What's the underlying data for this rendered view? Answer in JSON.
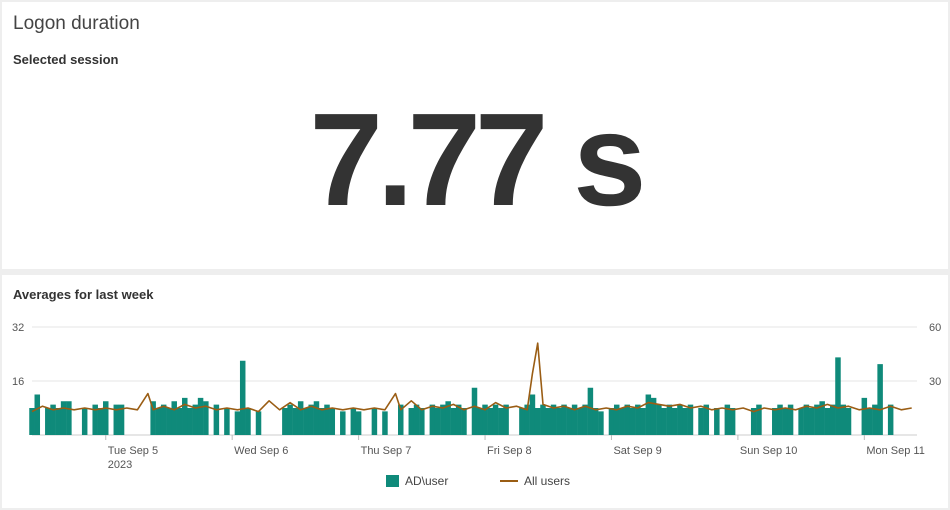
{
  "top_panel": {
    "title": "Logon duration",
    "subtitle": "Selected session",
    "value": "7.77 s"
  },
  "bottom_panel": {
    "subtitle": "Averages for last week"
  },
  "colors": {
    "bar": "#0f8a7a",
    "line": "#9a5d14",
    "grid": "#e6e6e6"
  },
  "chart_data": {
    "type": "bar",
    "title": "Averages for last week",
    "legend_position": "bottom",
    "grid": true,
    "y_left": {
      "ticks": [
        "32",
        "16"
      ],
      "range": [
        0,
        32
      ]
    },
    "y_right": {
      "ticks": [
        "60",
        "30"
      ],
      "range": [
        0,
        60
      ]
    },
    "x_range": [
      "2023-09-04 10:00",
      "2023-09-11 10:00"
    ],
    "x_ticks": [
      {
        "date": "2023-09-05",
        "label": "Tue Sep 5",
        "sublabel": "2023"
      },
      {
        "date": "2023-09-06",
        "label": "Wed Sep 6"
      },
      {
        "date": "2023-09-07",
        "label": "Thu Sep 7"
      },
      {
        "date": "2023-09-08",
        "label": "Fri Sep 8"
      },
      {
        "date": "2023-09-09",
        "label": "Sat Sep 9"
      },
      {
        "date": "2023-09-10",
        "label": "Sun Sep 10"
      },
      {
        "date": "2023-09-11",
        "label": "Mon Sep 11"
      }
    ],
    "series": [
      {
        "name": "AD\\user",
        "axis": "left",
        "type": "bar",
        "values": [
          {
            "x": "2023-09-04 10:00",
            "y": 8
          },
          {
            "x": "2023-09-04 11:00",
            "y": 12
          },
          {
            "x": "2023-09-04 13:00",
            "y": 8
          },
          {
            "x": "2023-09-04 14:00",
            "y": 9
          },
          {
            "x": "2023-09-04 15:00",
            "y": 8
          },
          {
            "x": "2023-09-04 16:00",
            "y": 10
          },
          {
            "x": "2023-09-04 17:00",
            "y": 10
          },
          {
            "x": "2023-09-04 20:00",
            "y": 8
          },
          {
            "x": "2023-09-04 22:00",
            "y": 9
          },
          {
            "x": "2023-09-04 23:00",
            "y": 8
          },
          {
            "x": "2023-09-05 00:00",
            "y": 10
          },
          {
            "x": "2023-09-05 02:00",
            "y": 9
          },
          {
            "x": "2023-09-05 03:00",
            "y": 9
          },
          {
            "x": "2023-09-05 09:00",
            "y": 10
          },
          {
            "x": "2023-09-05 10:00",
            "y": 8
          },
          {
            "x": "2023-09-05 11:00",
            "y": 9
          },
          {
            "x": "2023-09-05 12:00",
            "y": 8
          },
          {
            "x": "2023-09-05 13:00",
            "y": 10
          },
          {
            "x": "2023-09-05 14:00",
            "y": 8
          },
          {
            "x": "2023-09-05 15:00",
            "y": 11
          },
          {
            "x": "2023-09-05 16:00",
            "y": 8
          },
          {
            "x": "2023-09-05 17:00",
            "y": 9
          },
          {
            "x": "2023-09-05 18:00",
            "y": 11
          },
          {
            "x": "2023-09-05 19:00",
            "y": 10
          },
          {
            "x": "2023-09-05 21:00",
            "y": 9
          },
          {
            "x": "2023-09-05 23:00",
            "y": 8
          },
          {
            "x": "2023-09-06 01:00",
            "y": 7
          },
          {
            "x": "2023-09-06 02:00",
            "y": 22
          },
          {
            "x": "2023-09-06 03:00",
            "y": 8
          },
          {
            "x": "2023-09-06 05:00",
            "y": 7
          },
          {
            "x": "2023-09-06 10:00",
            "y": 8
          },
          {
            "x": "2023-09-06 11:00",
            "y": 9
          },
          {
            "x": "2023-09-06 12:00",
            "y": 8
          },
          {
            "x": "2023-09-06 13:00",
            "y": 10
          },
          {
            "x": "2023-09-06 14:00",
            "y": 8
          },
          {
            "x": "2023-09-06 15:00",
            "y": 9
          },
          {
            "x": "2023-09-06 16:00",
            "y": 10
          },
          {
            "x": "2023-09-06 17:00",
            "y": 8
          },
          {
            "x": "2023-09-06 18:00",
            "y": 9
          },
          {
            "x": "2023-09-06 19:00",
            "y": 8
          },
          {
            "x": "2023-09-06 21:00",
            "y": 7
          },
          {
            "x": "2023-09-06 23:00",
            "y": 8
          },
          {
            "x": "2023-09-07 00:00",
            "y": 7
          },
          {
            "x": "2023-09-07 03:00",
            "y": 8
          },
          {
            "x": "2023-09-07 05:00",
            "y": 7
          },
          {
            "x": "2023-09-07 08:00",
            "y": 9
          },
          {
            "x": "2023-09-07 10:00",
            "y": 8
          },
          {
            "x": "2023-09-07 11:00",
            "y": 9
          },
          {
            "x": "2023-09-07 12:00",
            "y": 8
          },
          {
            "x": "2023-09-07 14:00",
            "y": 9
          },
          {
            "x": "2023-09-07 15:00",
            "y": 8
          },
          {
            "x": "2023-09-07 16:00",
            "y": 9
          },
          {
            "x": "2023-09-07 17:00",
            "y": 10
          },
          {
            "x": "2023-09-07 18:00",
            "y": 8
          },
          {
            "x": "2023-09-07 19:00",
            "y": 9
          },
          {
            "x": "2023-09-07 20:00",
            "y": 8
          },
          {
            "x": "2023-09-07 22:00",
            "y": 14
          },
          {
            "x": "2023-09-07 23:00",
            "y": 8
          },
          {
            "x": "2023-09-08 00:00",
            "y": 9
          },
          {
            "x": "2023-09-08 01:00",
            "y": 8
          },
          {
            "x": "2023-09-08 02:00",
            "y": 9
          },
          {
            "x": "2023-09-08 03:00",
            "y": 8
          },
          {
            "x": "2023-09-08 04:00",
            "y": 9
          },
          {
            "x": "2023-09-08 07:00",
            "y": 8
          },
          {
            "x": "2023-09-08 08:00",
            "y": 9
          },
          {
            "x": "2023-09-08 09:00",
            "y": 12
          },
          {
            "x": "2023-09-08 10:00",
            "y": 8
          },
          {
            "x": "2023-09-08 11:00",
            "y": 9
          },
          {
            "x": "2023-09-08 12:00",
            "y": 8
          },
          {
            "x": "2023-09-08 13:00",
            "y": 9
          },
          {
            "x": "2023-09-08 14:00",
            "y": 8
          },
          {
            "x": "2023-09-08 15:00",
            "y": 9
          },
          {
            "x": "2023-09-08 16:00",
            "y": 8
          },
          {
            "x": "2023-09-08 17:00",
            "y": 9
          },
          {
            "x": "2023-09-08 18:00",
            "y": 8
          },
          {
            "x": "2023-09-08 19:00",
            "y": 9
          },
          {
            "x": "2023-09-08 20:00",
            "y": 14
          },
          {
            "x": "2023-09-08 21:00",
            "y": 8
          },
          {
            "x": "2023-09-08 22:00",
            "y": 7
          },
          {
            "x": "2023-09-09 00:00",
            "y": 8
          },
          {
            "x": "2023-09-09 01:00",
            "y": 9
          },
          {
            "x": "2023-09-09 02:00",
            "y": 8
          },
          {
            "x": "2023-09-09 03:00",
            "y": 9
          },
          {
            "x": "2023-09-09 04:00",
            "y": 8
          },
          {
            "x": "2023-09-09 05:00",
            "y": 9
          },
          {
            "x": "2023-09-09 06:00",
            "y": 8
          },
          {
            "x": "2023-09-09 07:00",
            "y": 12
          },
          {
            "x": "2023-09-09 08:00",
            "y": 11
          },
          {
            "x": "2023-09-09 09:00",
            "y": 9
          },
          {
            "x": "2023-09-09 10:00",
            "y": 8
          },
          {
            "x": "2023-09-09 11:00",
            "y": 9
          },
          {
            "x": "2023-09-09 12:00",
            "y": 8
          },
          {
            "x": "2023-09-09 13:00",
            "y": 9
          },
          {
            "x": "2023-09-09 14:00",
            "y": 8
          },
          {
            "x": "2023-09-09 15:00",
            "y": 9
          },
          {
            "x": "2023-09-09 17:00",
            "y": 8
          },
          {
            "x": "2023-09-09 18:00",
            "y": 9
          },
          {
            "x": "2023-09-09 20:00",
            "y": 8
          },
          {
            "x": "2023-09-09 22:00",
            "y": 9
          },
          {
            "x": "2023-09-09 23:00",
            "y": 8
          },
          {
            "x": "2023-09-10 03:00",
            "y": 8
          },
          {
            "x": "2023-09-10 04:00",
            "y": 9
          },
          {
            "x": "2023-09-10 07:00",
            "y": 8
          },
          {
            "x": "2023-09-10 08:00",
            "y": 9
          },
          {
            "x": "2023-09-10 09:00",
            "y": 8
          },
          {
            "x": "2023-09-10 10:00",
            "y": 9
          },
          {
            "x": "2023-09-10 12:00",
            "y": 8
          },
          {
            "x": "2023-09-10 13:00",
            "y": 9
          },
          {
            "x": "2023-09-10 14:00",
            "y": 8
          },
          {
            "x": "2023-09-10 15:00",
            "y": 9
          },
          {
            "x": "2023-09-10 16:00",
            "y": 10
          },
          {
            "x": "2023-09-10 17:00",
            "y": 8
          },
          {
            "x": "2023-09-10 18:00",
            "y": 9
          },
          {
            "x": "2023-09-10 19:00",
            "y": 23
          },
          {
            "x": "2023-09-10 20:00",
            "y": 9
          },
          {
            "x": "2023-09-10 21:00",
            "y": 8
          },
          {
            "x": "2023-09-11 00:00",
            "y": 11
          },
          {
            "x": "2023-09-11 01:00",
            "y": 8
          },
          {
            "x": "2023-09-11 02:00",
            "y": 9
          },
          {
            "x": "2023-09-11 03:00",
            "y": 21
          },
          {
            "x": "2023-09-11 05:00",
            "y": 9
          }
        ]
      },
      {
        "name": "All users",
        "axis": "right",
        "type": "line",
        "values": [
          {
            "x": "2023-09-04 10:00",
            "y": 13
          },
          {
            "x": "2023-09-04 12:00",
            "y": 16
          },
          {
            "x": "2023-09-04 14:00",
            "y": 14
          },
          {
            "x": "2023-09-04 16:00",
            "y": 15
          },
          {
            "x": "2023-09-04 18:00",
            "y": 14
          },
          {
            "x": "2023-09-04 20:00",
            "y": 15
          },
          {
            "x": "2023-09-04 22:00",
            "y": 14
          },
          {
            "x": "2023-09-05 00:00",
            "y": 15
          },
          {
            "x": "2023-09-05 02:00",
            "y": 14
          },
          {
            "x": "2023-09-05 04:00",
            "y": 15
          },
          {
            "x": "2023-09-05 06:00",
            "y": 14
          },
          {
            "x": "2023-09-05 08:00",
            "y": 23
          },
          {
            "x": "2023-09-05 09:00",
            "y": 14
          },
          {
            "x": "2023-09-05 11:00",
            "y": 16
          },
          {
            "x": "2023-09-05 13:00",
            "y": 14
          },
          {
            "x": "2023-09-05 15:00",
            "y": 17
          },
          {
            "x": "2023-09-05 17:00",
            "y": 15
          },
          {
            "x": "2023-09-05 19:00",
            "y": 16
          },
          {
            "x": "2023-09-05 21:00",
            "y": 14
          },
          {
            "x": "2023-09-05 23:00",
            "y": 15
          },
          {
            "x": "2023-09-06 01:00",
            "y": 14
          },
          {
            "x": "2023-09-06 03:00",
            "y": 15
          },
          {
            "x": "2023-09-06 05:00",
            "y": 13
          },
          {
            "x": "2023-09-06 07:00",
            "y": 19
          },
          {
            "x": "2023-09-06 09:00",
            "y": 14
          },
          {
            "x": "2023-09-06 11:00",
            "y": 18
          },
          {
            "x": "2023-09-06 13:00",
            "y": 14
          },
          {
            "x": "2023-09-06 15:00",
            "y": 16
          },
          {
            "x": "2023-09-06 17:00",
            "y": 14
          },
          {
            "x": "2023-09-06 19:00",
            "y": 15
          },
          {
            "x": "2023-09-06 21:00",
            "y": 14
          },
          {
            "x": "2023-09-06 23:00",
            "y": 15
          },
          {
            "x": "2023-09-07 01:00",
            "y": 14
          },
          {
            "x": "2023-09-07 03:00",
            "y": 15
          },
          {
            "x": "2023-09-07 05:00",
            "y": 14
          },
          {
            "x": "2023-09-07 07:00",
            "y": 23
          },
          {
            "x": "2023-09-07 08:00",
            "y": 14
          },
          {
            "x": "2023-09-07 10:00",
            "y": 19
          },
          {
            "x": "2023-09-07 12:00",
            "y": 14
          },
          {
            "x": "2023-09-07 14:00",
            "y": 16
          },
          {
            "x": "2023-09-07 16:00",
            "y": 15
          },
          {
            "x": "2023-09-07 18:00",
            "y": 17
          },
          {
            "x": "2023-09-07 20:00",
            "y": 14
          },
          {
            "x": "2023-09-07 22:00",
            "y": 16
          },
          {
            "x": "2023-09-08 00:00",
            "y": 14
          },
          {
            "x": "2023-09-08 02:00",
            "y": 18
          },
          {
            "x": "2023-09-08 04:00",
            "y": 15
          },
          {
            "x": "2023-09-08 06:00",
            "y": 16
          },
          {
            "x": "2023-09-08 08:00",
            "y": 14
          },
          {
            "x": "2023-09-08 09:00",
            "y": 34
          },
          {
            "x": "2023-09-08 10:00",
            "y": 51
          },
          {
            "x": "2023-09-08 11:00",
            "y": 17
          },
          {
            "x": "2023-09-08 13:00",
            "y": 15
          },
          {
            "x": "2023-09-08 15:00",
            "y": 16
          },
          {
            "x": "2023-09-08 17:00",
            "y": 14
          },
          {
            "x": "2023-09-08 19:00",
            "y": 16
          },
          {
            "x": "2023-09-08 21:00",
            "y": 14
          },
          {
            "x": "2023-09-08 23:00",
            "y": 15
          },
          {
            "x": "2023-09-09 01:00",
            "y": 14
          },
          {
            "x": "2023-09-09 03:00",
            "y": 16
          },
          {
            "x": "2023-09-09 05:00",
            "y": 15
          },
          {
            "x": "2023-09-09 07:00",
            "y": 18
          },
          {
            "x": "2023-09-09 09:00",
            "y": 17
          },
          {
            "x": "2023-09-09 11:00",
            "y": 16
          },
          {
            "x": "2023-09-09 13:00",
            "y": 17
          },
          {
            "x": "2023-09-09 15:00",
            "y": 15
          },
          {
            "x": "2023-09-09 17:00",
            "y": 16
          },
          {
            "x": "2023-09-09 19:00",
            "y": 14
          },
          {
            "x": "2023-09-09 21:00",
            "y": 15
          },
          {
            "x": "2023-09-09 23:00",
            "y": 14
          },
          {
            "x": "2023-09-10 01:00",
            "y": 15
          },
          {
            "x": "2023-09-10 03:00",
            "y": 13
          },
          {
            "x": "2023-09-10 05:00",
            "y": 15
          },
          {
            "x": "2023-09-10 07:00",
            "y": 14
          },
          {
            "x": "2023-09-10 09:00",
            "y": 15
          },
          {
            "x": "2023-09-10 11:00",
            "y": 14
          },
          {
            "x": "2023-09-10 13:00",
            "y": 16
          },
          {
            "x": "2023-09-10 15:00",
            "y": 15
          },
          {
            "x": "2023-09-10 17:00",
            "y": 17
          },
          {
            "x": "2023-09-10 19:00",
            "y": 15
          },
          {
            "x": "2023-09-10 21:00",
            "y": 16
          },
          {
            "x": "2023-09-10 23:00",
            "y": 14
          },
          {
            "x": "2023-09-11 01:00",
            "y": 15
          },
          {
            "x": "2023-09-11 03:00",
            "y": 14
          },
          {
            "x": "2023-09-11 05:00",
            "y": 16
          },
          {
            "x": "2023-09-11 07:00",
            "y": 14
          },
          {
            "x": "2023-09-11 09:00",
            "y": 15
          }
        ]
      }
    ]
  }
}
